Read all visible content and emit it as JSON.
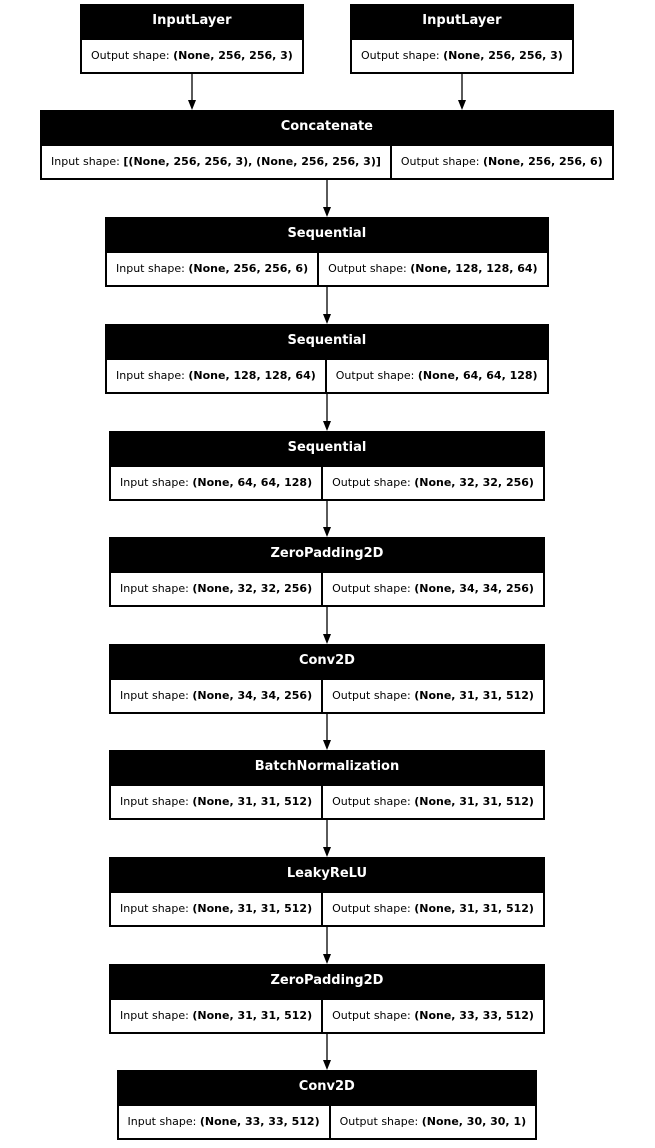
{
  "labels": {
    "input": "Input shape: ",
    "output": "Output shape: "
  },
  "layers": [
    {
      "name": "InputLayer",
      "output": "(None, 256, 256, 3)"
    },
    {
      "name": "InputLayer",
      "output": "(None, 256, 256, 3)"
    },
    {
      "name": "Concatenate",
      "input": "[(None, 256, 256, 3), (None, 256, 256, 3)]",
      "output": "(None, 256, 256, 6)"
    },
    {
      "name": "Sequential",
      "input": "(None, 256, 256, 6)",
      "output": "(None, 128, 128, 64)"
    },
    {
      "name": "Sequential",
      "input": "(None, 128, 128, 64)",
      "output": "(None, 64, 64, 128)"
    },
    {
      "name": "Sequential",
      "input": "(None, 64, 64, 128)",
      "output": "(None, 32, 32, 256)"
    },
    {
      "name": "ZeroPadding2D",
      "input": "(None, 32, 32, 256)",
      "output": "(None, 34, 34, 256)"
    },
    {
      "name": "Conv2D",
      "input": "(None, 34, 34, 256)",
      "output": "(None, 31, 31, 512)"
    },
    {
      "name": "BatchNormalization",
      "input": "(None, 31, 31, 512)",
      "output": "(None, 31, 31, 512)"
    },
    {
      "name": "LeakyReLU",
      "input": "(None, 31, 31, 512)",
      "output": "(None, 31, 31, 512)"
    },
    {
      "name": "ZeroPadding2D",
      "input": "(None, 31, 31, 512)",
      "output": "(None, 33, 33, 512)"
    },
    {
      "name": "Conv2D",
      "input": "(None, 33, 33, 512)",
      "output": "(None, 30, 30, 1)"
    }
  ],
  "edges": [
    [
      0,
      2
    ],
    [
      1,
      2
    ],
    [
      2,
      3
    ],
    [
      3,
      4
    ],
    [
      4,
      5
    ],
    [
      5,
      6
    ],
    [
      6,
      7
    ],
    [
      7,
      8
    ],
    [
      8,
      9
    ],
    [
      9,
      10
    ],
    [
      10,
      11
    ]
  ]
}
